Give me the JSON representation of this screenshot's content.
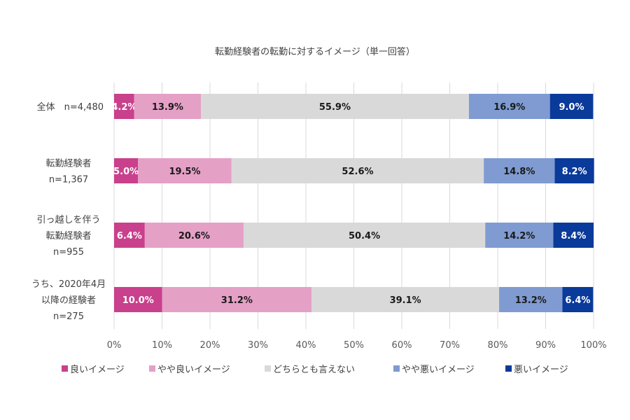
{
  "chart_data": {
    "type": "bar",
    "orientation": "horizontal",
    "stacked": "percent",
    "title": "転勤経験者の転勤に対するイメージ（単一回答）",
    "xlabel": "",
    "ylabel": "",
    "xlim": [
      0,
      100
    ],
    "x_ticks": [
      "0%",
      "10%",
      "20%",
      "30%",
      "40%",
      "50%",
      "60%",
      "70%",
      "80%",
      "90%",
      "100%"
    ],
    "grid": true,
    "legend_position": "bottom",
    "categories": [
      [
        "全体　n=4,480"
      ],
      [
        "転勤経験者",
        "n=1,367"
      ],
      [
        "引っ越しを伴う",
        "転勤経験者",
        "n=955"
      ],
      [
        "うち、2020年4月",
        "以降の経験者",
        "n=275"
      ]
    ],
    "series": [
      {
        "name": "良いイメージ",
        "color": "#c9408c",
        "label_color": "#ffffff",
        "values": [
          4.2,
          5.0,
          6.4,
          10.0
        ]
      },
      {
        "name": "やや良いイメージ",
        "color": "#e5a0c6",
        "label_color": "#1a1a1a",
        "values": [
          13.9,
          19.5,
          20.6,
          31.2
        ]
      },
      {
        "name": "どちらとも言えない",
        "color": "#d9d9d9",
        "label_color": "#1a1a1a",
        "values": [
          55.9,
          52.6,
          50.4,
          39.1
        ]
      },
      {
        "name": "やや悪いイメージ",
        "color": "#7f9bd1",
        "label_color": "#1a1a1a",
        "values": [
          16.9,
          14.8,
          14.2,
          13.2
        ]
      },
      {
        "name": "悪いイメージ",
        "color": "#0a3a9a",
        "label_color": "#ffffff",
        "values": [
          9.0,
          8.2,
          8.4,
          6.4
        ]
      }
    ]
  }
}
